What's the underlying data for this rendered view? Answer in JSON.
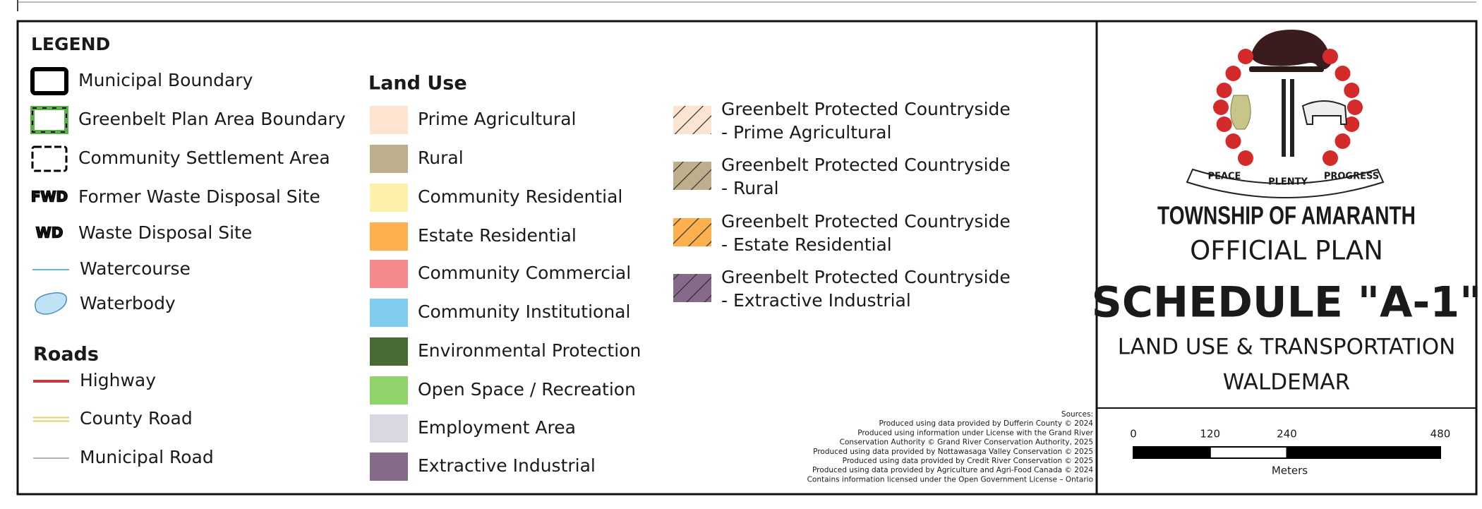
{
  "legend": {
    "title": "LEGEND",
    "items": [
      {
        "label": "Municipal Boundary"
      },
      {
        "label": "Greenbelt Plan Area Boundary"
      },
      {
        "label": "Community Settlement Area"
      },
      {
        "label": "Former Waste Disposal Site",
        "badge": "FWD"
      },
      {
        "label": "Waste Disposal Site",
        "badge": "WD"
      },
      {
        "label": "Watercourse"
      },
      {
        "label": "Waterbody"
      }
    ]
  },
  "roads": {
    "title": "Roads",
    "items": [
      {
        "label": "Highway",
        "color": "#c8383c"
      },
      {
        "label": "County Road",
        "color": "#e3d36a"
      },
      {
        "label": "Municipal Road",
        "color": "#9a9a9a"
      }
    ]
  },
  "land_use": {
    "title": "Land Use",
    "items": [
      {
        "label": "Prime Agricultural",
        "color": "#fde4d0"
      },
      {
        "label": "Rural",
        "color": "#bfae8b"
      },
      {
        "label": "Community Residential",
        "color": "#fdf1a9"
      },
      {
        "label": "Estate Residential",
        "color": "#fcb14e"
      },
      {
        "label": "Community Commercial",
        "color": "#f5898b"
      },
      {
        "label": "Community Institutional",
        "color": "#80cdef"
      },
      {
        "label": "Environmental Protection",
        "color": "#4a6a33"
      },
      {
        "label": "Open Space / Recreation",
        "color": "#8fd36b"
      },
      {
        "label": "Employment Area",
        "color": "#d8d8e2"
      },
      {
        "label": "Extractive Industrial",
        "color": "#856a89"
      }
    ]
  },
  "greenbelt": {
    "items": [
      {
        "lines": [
          "Greenbelt Protected Countryside",
          "- Prime Agricultural"
        ],
        "color": "#fde4d0"
      },
      {
        "lines": [
          "Greenbelt Protected Countryside",
          "- Rural"
        ],
        "color": "#bfae8b"
      },
      {
        "lines": [
          "Greenbelt Protected Countryside",
          "- Estate Residential"
        ],
        "color": "#fcb14e"
      },
      {
        "lines": [
          "Greenbelt Protected Countryside",
          "- Extractive Industrial"
        ],
        "color": "#856a89"
      }
    ]
  },
  "sources": [
    "Sources:",
    "Produced using data provided by Dufferin County © 2024",
    "Produced using information under License with the Grand River",
    "Conservation Authority © Grand River Conservation Authority, 2025",
    "Produced using data provided by Nottawasaga Valley Conservation © 2025",
    "Produced using data provided by Credit River Conservation © 2025",
    "Produced using data provided by Agriculture and Agri-Food Canada © 2024",
    "Contains information licensed under the Open Government License – Ontario"
  ],
  "title_block": {
    "motto": [
      "PEACE",
      "PLENTY",
      "PROGRESS"
    ],
    "municipality": "TOWNSHIP OF AMARANTH",
    "plan": "OFFICIAL PLAN",
    "schedule": "SCHEDULE \"A-1\"",
    "subtitle": "LAND USE & TRANSPORTATION",
    "area": "WALDEMAR"
  },
  "scale_bar": {
    "ticks": [
      0,
      120,
      240,
      480
    ],
    "unit": "Meters"
  }
}
